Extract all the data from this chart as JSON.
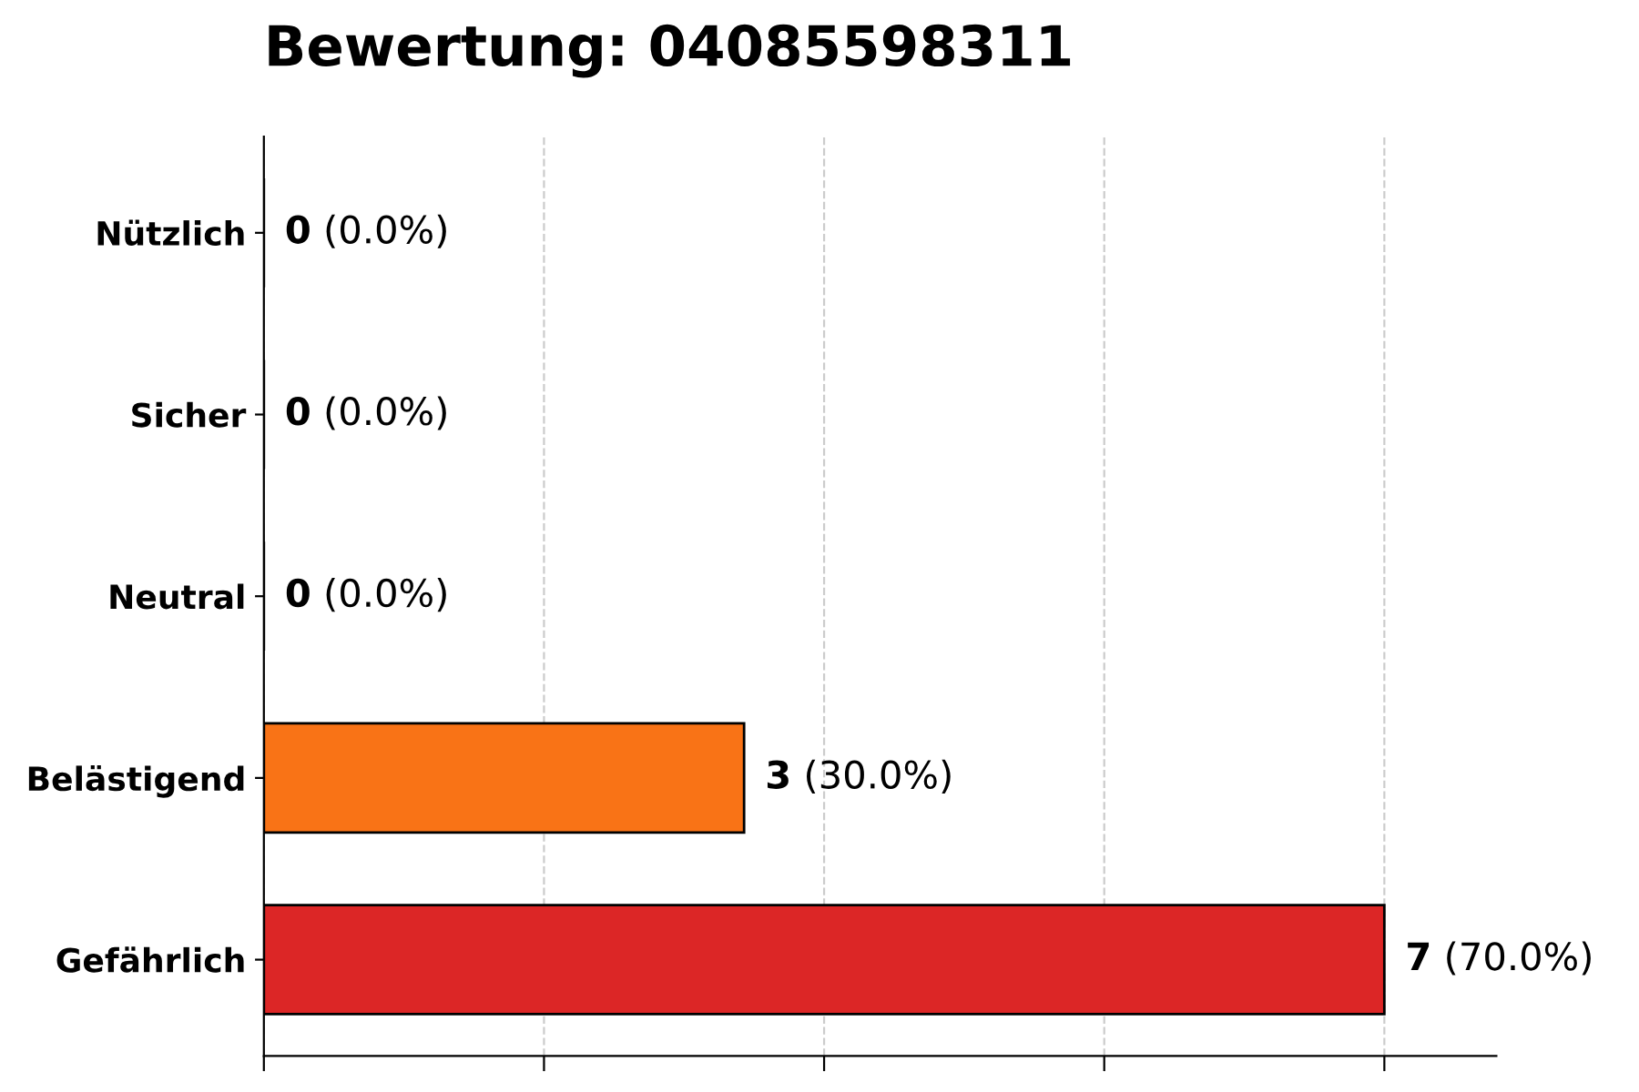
{
  "chart_data": {
    "type": "bar",
    "orientation": "horizontal",
    "title": "Bewertung: 04085598311",
    "categories": [
      "Nützlich",
      "Sicher",
      "Neutral",
      "Belästigend",
      "Gefährlich"
    ],
    "values": [
      0,
      0,
      0,
      3,
      7
    ],
    "colors": [
      "#000000",
      "#000000",
      "#000000",
      "#f97316",
      "#dc2626"
    ],
    "value_labels": [
      "0 (0.0%)",
      "0 (0.0%)",
      "0 (0.0%)",
      "3 (30.0%)",
      "7 (70.0%)"
    ],
    "xlim": [
      0,
      7.7
    ],
    "xticks": [
      {
        "value": 0,
        "label": null
      },
      {
        "value": 1.75,
        "label": null
      },
      {
        "value": 3.5,
        "label": null
      },
      {
        "value": 5.25,
        "label": null
      },
      {
        "value": 7,
        "label": null
      }
    ],
    "grid": "x",
    "legend": false
  }
}
